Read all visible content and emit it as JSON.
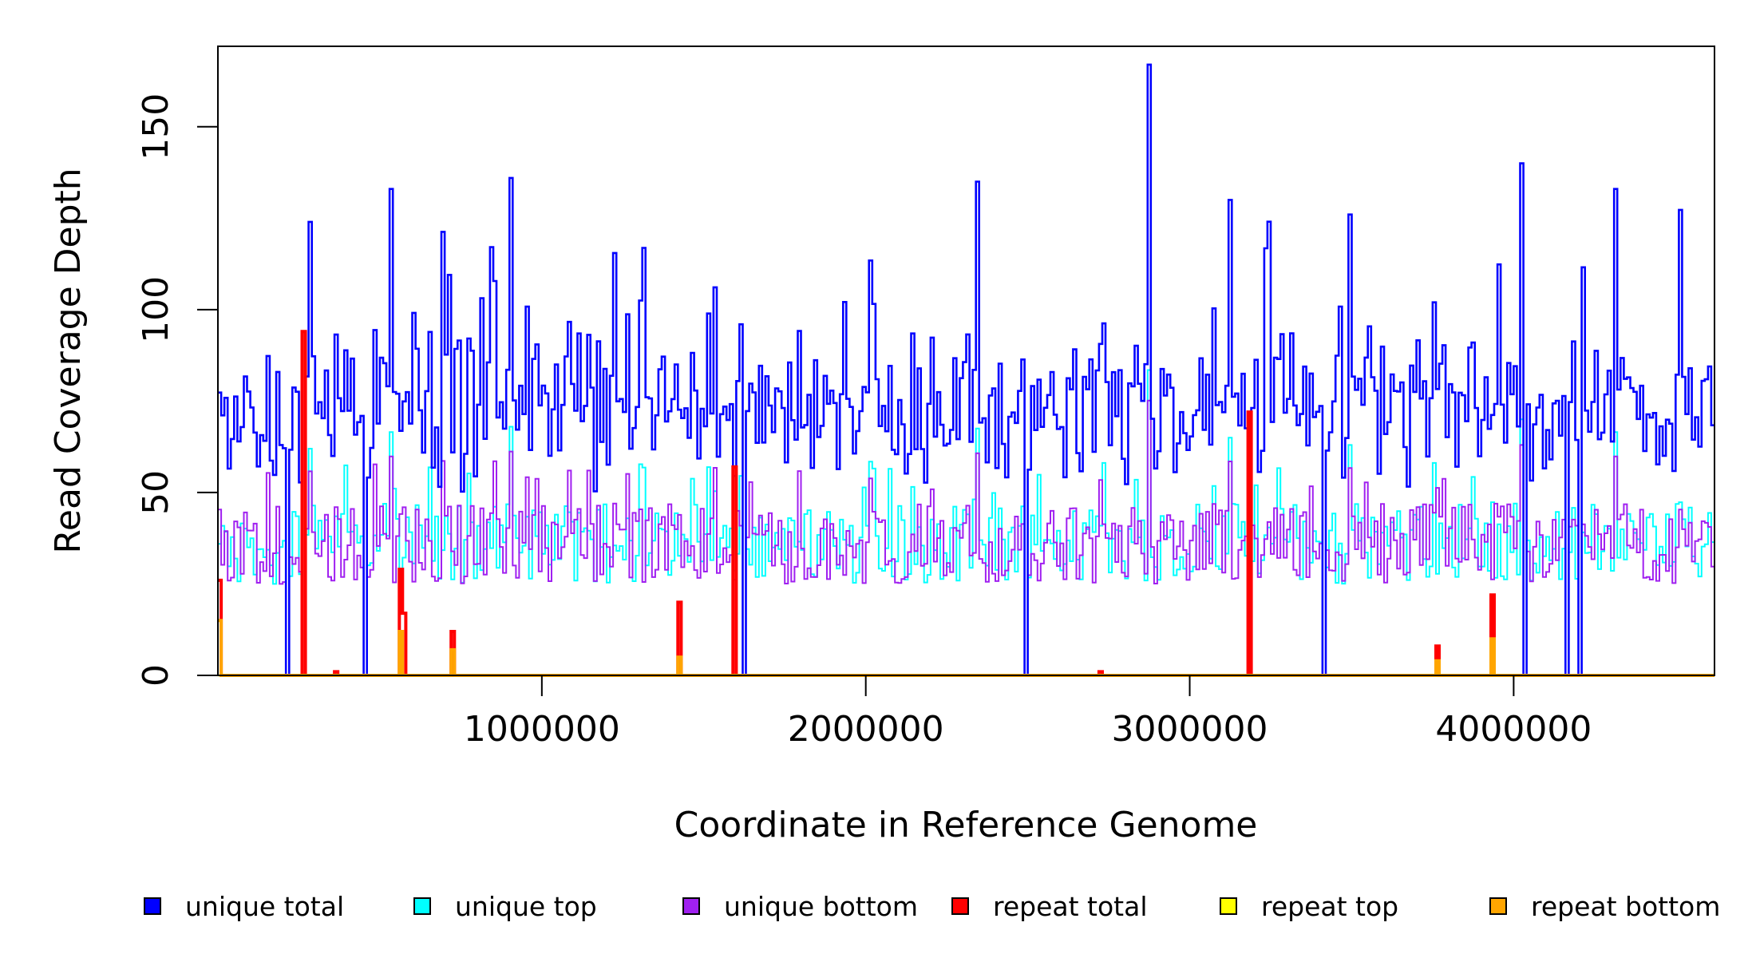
{
  "chart_data": {
    "type": "line",
    "xlabel": "Coordinate in Reference Genome",
    "ylabel": "Read Coverage Depth",
    "xlim": [
      1,
      4620000
    ],
    "ylim": [
      0,
      172
    ],
    "x_ticks": [
      1000000,
      2000000,
      3000000,
      4000000
    ],
    "x_tick_labels": [
      "1000000",
      "2000000",
      "3000000",
      "4000000"
    ],
    "y_ticks": [
      0,
      50,
      100,
      150
    ],
    "y_tick_labels": [
      "0",
      "50",
      "100",
      "150"
    ],
    "grid": false,
    "bin_size": 10000,
    "legend_position": "bottom",
    "series": [
      {
        "name": "unique total",
        "color": "#0000FF",
        "style": "step",
        "peak_max": 167,
        "typical_mean": 72
      },
      {
        "name": "unique top",
        "color": "#00FFFF",
        "style": "step",
        "typical_mean": 36
      },
      {
        "name": "unique bottom",
        "color": "#A020F0",
        "style": "step",
        "typical_mean": 36
      },
      {
        "name": "repeat total",
        "color": "#FF0000",
        "style": "step",
        "peaks": [
          [
            5000,
            26
          ],
          [
            265000,
            94
          ],
          [
            365000,
            1
          ],
          [
            565000,
            29
          ],
          [
            575000,
            17
          ],
          [
            725000,
            12
          ],
          [
            1425000,
            20
          ],
          [
            1595000,
            57
          ],
          [
            2725000,
            1
          ],
          [
            3185000,
            72
          ],
          [
            3765000,
            8
          ],
          [
            3935000,
            22
          ]
        ]
      },
      {
        "name": "repeat top",
        "color": "#FFFF00",
        "style": "step",
        "typical_mean": 0
      },
      {
        "name": "repeat bottom",
        "color": "#FFA500",
        "style": "step",
        "peaks": [
          [
            5000,
            15
          ],
          [
            565000,
            12
          ],
          [
            725000,
            7
          ],
          [
            1425000,
            5
          ],
          [
            3765000,
            4
          ],
          [
            3935000,
            10
          ]
        ]
      }
    ],
    "notable_points": {
      "unique_total_peaks": [
        [
          285000,
          124
        ],
        [
          540000,
          133
        ],
        [
          910000,
          136
        ],
        [
          2350000,
          135
        ],
        [
          2875000,
          167
        ],
        [
          3125000,
          130
        ],
        [
          3500000,
          126
        ],
        [
          4025000,
          140
        ],
        [
          4320000,
          133
        ]
      ],
      "coverage_dropouts_to_zero": [
        220000,
        265000,
        455000,
        1630000,
        2500000,
        3185000,
        3420000,
        4040000,
        4170000,
        4205000
      ]
    }
  }
}
